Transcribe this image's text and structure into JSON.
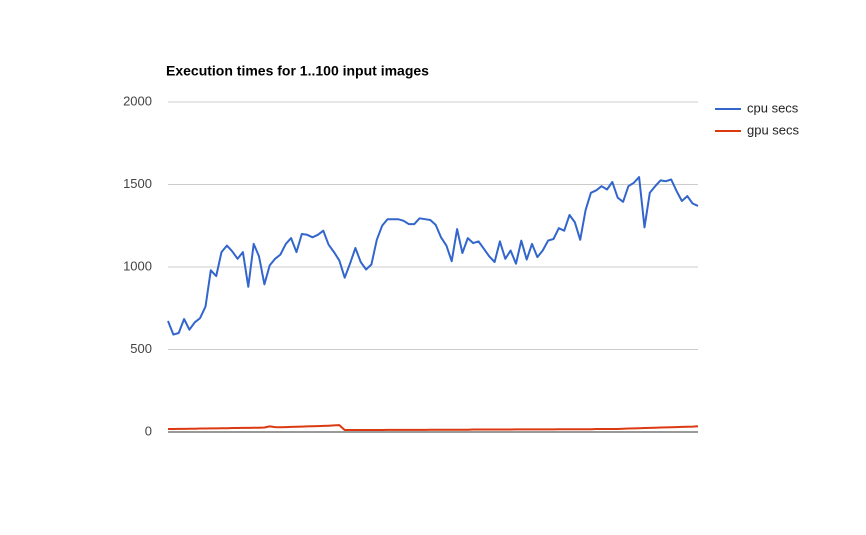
{
  "chart_data": {
    "type": "line",
    "title": "Execution times for 1..100 input images",
    "ylim": [
      0,
      2000
    ],
    "yticks": [
      0,
      500,
      1000,
      1500,
      2000
    ],
    "grid": true,
    "legend": "right",
    "series": [
      {
        "name": "cpu secs",
        "color": "#3366cc",
        "values": [
          673,
          590,
          600,
          685,
          620,
          665,
          690,
          760,
          980,
          945,
          1090,
          1130,
          1095,
          1050,
          1090,
          880,
          1140,
          1065,
          895,
          1010,
          1050,
          1075,
          1140,
          1175,
          1090,
          1200,
          1195,
          1180,
          1195,
          1220,
          1135,
          1090,
          1040,
          935,
          1020,
          1115,
          1030,
          985,
          1015,
          1165,
          1250,
          1290,
          1290,
          1290,
          1280,
          1260,
          1260,
          1295,
          1290,
          1285,
          1255,
          1180,
          1130,
          1035,
          1230,
          1085,
          1175,
          1145,
          1155,
          1110,
          1065,
          1030,
          1155,
          1050,
          1100,
          1020,
          1160,
          1045,
          1140,
          1060,
          1100,
          1160,
          1170,
          1235,
          1220,
          1315,
          1270,
          1165,
          1345,
          1450,
          1465,
          1490,
          1470,
          1515,
          1420,
          1395,
          1490,
          1510,
          1545,
          1240,
          1450,
          1490,
          1525,
          1520,
          1530,
          1460,
          1400,
          1430,
          1385,
          1370
        ]
      },
      {
        "name": "gpu secs",
        "color": "#dc3912",
        "values": [
          18,
          18,
          19,
          19,
          20,
          20,
          21,
          21,
          22,
          22,
          23,
          23,
          24,
          24,
          25,
          25,
          26,
          26,
          27,
          34,
          30,
          29,
          30,
          31,
          32,
          33,
          34,
          35,
          36,
          37,
          38,
          40,
          42,
          12,
          12,
          12,
          12,
          12,
          12,
          12,
          12,
          13,
          13,
          13,
          13,
          13,
          13,
          13,
          13,
          14,
          14,
          14,
          14,
          14,
          14,
          14,
          14,
          15,
          15,
          15,
          15,
          15,
          15,
          15,
          15,
          16,
          16,
          16,
          16,
          16,
          16,
          16,
          16,
          17,
          17,
          17,
          17,
          17,
          17,
          17,
          18,
          18,
          18,
          18,
          18,
          20,
          21,
          22,
          23,
          24,
          25,
          26,
          27,
          28,
          29,
          30,
          31,
          32,
          33,
          35
        ]
      }
    ]
  }
}
